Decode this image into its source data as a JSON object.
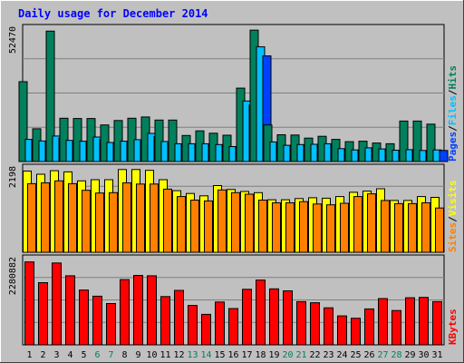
{
  "chart_data": {
    "type": "bar",
    "title": "Daily usage for December 2014",
    "days": [
      "1",
      "2",
      "3",
      "4",
      "5",
      "6",
      "7",
      "8",
      "9",
      "10",
      "11",
      "12",
      "13",
      "14",
      "15",
      "16",
      "17",
      "18",
      "19",
      "20",
      "21",
      "22",
      "23",
      "24",
      "25",
      "26",
      "27",
      "28",
      "29",
      "30",
      "31"
    ],
    "weekend_days": [
      "6",
      "7",
      "13",
      "14",
      "20",
      "21",
      "27",
      "28"
    ],
    "panels": [
      {
        "name": "hits-files-pages",
        "max_label": "52470",
        "ymax": 52470,
        "right_label_parts": [
          "Pages",
          "Files",
          "Hits"
        ],
        "series": [
          {
            "name": "Hits",
            "color": "#00805c",
            "values": [
              31000,
              12700,
              50600,
              16800,
              16700,
              16700,
              14200,
              15900,
              16800,
              17300,
              16100,
              16100,
              10100,
              11900,
              11000,
              10200,
              28500,
              51000,
              14200,
              10400,
              10300,
              9100,
              9800,
              8600,
              7700,
              7900,
              7200,
              6900,
              15700,
              15700,
              14500
            ]
          },
          {
            "name": "Files",
            "color": "#00c0ff",
            "values": [
              8600,
              8000,
              9900,
              8200,
              7900,
              9500,
              7400,
              7900,
              8500,
              10900,
              7800,
              6900,
              6900,
              6900,
              6600,
              5800,
              23500,
              44500,
              7600,
              6300,
              6600,
              6700,
              6900,
              5000,
              4500,
              5300,
              4900,
              4400,
              4600,
              4300,
              4500
            ]
          },
          {
            "name": "Pages",
            "color": "#0040ff",
            "values": [
              8200,
              7600,
              9100,
              7700,
              7500,
              8600,
              7000,
              7500,
              8000,
              9700,
              7300,
              6600,
              6600,
              6600,
              6300,
              5600,
              22000,
              41000,
              7200,
              6000,
              6300,
              6400,
              6600,
              4800,
              4300,
              5100,
              4700,
              4200,
              4400,
              4100,
              4300
            ]
          }
        ]
      },
      {
        "name": "visits-sites",
        "max_label": "2198",
        "ymax": 2198,
        "right_label_parts": [
          "Sites",
          "Visits"
        ],
        "series": [
          {
            "name": "Visits",
            "color": "#ffff00",
            "values": [
              2070,
              1990,
              2080,
              2050,
              1820,
              1850,
              1850,
              2110,
              2110,
              2090,
              1850,
              1570,
              1500,
              1440,
              1700,
              1600,
              1550,
              1520,
              1340,
              1340,
              1370,
              1390,
              1380,
              1420,
              1530,
              1560,
              1620,
              1320,
              1320,
              1420,
              1400
            ]
          },
          {
            "name": "Sites",
            "color": "#ff8000",
            "values": [
              1750,
              1770,
              1820,
              1750,
              1580,
              1510,
              1520,
              1770,
              1740,
              1740,
              1610,
              1420,
              1330,
              1310,
              1590,
              1520,
              1480,
              1330,
              1260,
              1260,
              1290,
              1230,
              1210,
              1250,
              1420,
              1490,
              1320,
              1240,
              1240,
              1260,
              1130
            ]
          }
        ]
      },
      {
        "name": "kbytes",
        "max_label": "2280882",
        "ymax": 2280882,
        "right_label_parts": [
          "KBytes"
        ],
        "series": [
          {
            "name": "KBytes",
            "color": "#ff0000",
            "values": [
              2150000,
              1610000,
              2120000,
              1790000,
              1420000,
              1260000,
              1070000,
              1690000,
              1800000,
              1790000,
              1250000,
              1410000,
              1020000,
              790000,
              1110000,
              940000,
              1440000,
              1680000,
              1450000,
              1400000,
              1120000,
              1090000,
              960000,
              750000,
              690000,
              930000,
              1200000,
              890000,
              1220000,
              1230000,
              1120000
            ]
          }
        ]
      }
    ],
    "colors": {
      "background": "#c0c0c0",
      "title": "#0000ff",
      "weekday_label": "#0000ff",
      "weekend_label": "#00805c",
      "grid": "#808080",
      "hits": "#00805c",
      "files": "#00c0ff",
      "pages": "#0040ff",
      "visits": "#ffff00",
      "sites": "#ff8000",
      "kbytes": "#ff0000"
    }
  }
}
